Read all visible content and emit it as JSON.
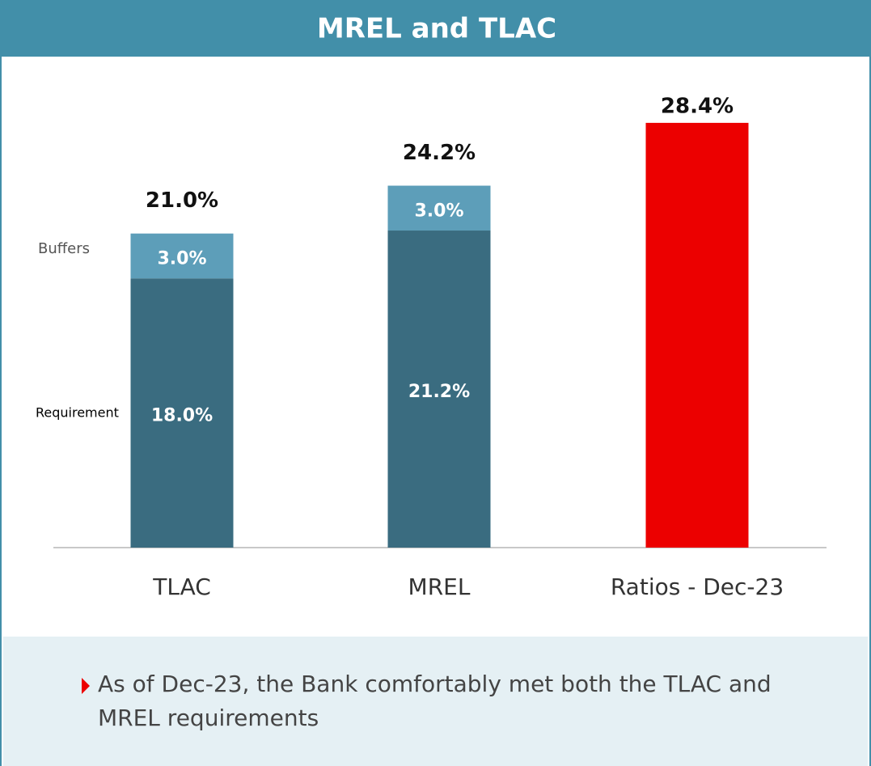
{
  "chart_data": {
    "type": "stacked_bar",
    "title": "MREL  and TLAC",
    "categories": [
      "TLAC",
      "MREL",
      "Ratios - Dec-23"
    ],
    "series": [
      {
        "name": "Requirement",
        "color": "#3a6c80",
        "values": [
          18.0,
          21.2,
          null
        ],
        "value_labels": [
          "18.0%",
          "21.2%",
          null
        ]
      },
      {
        "name": "Buffers",
        "color": "#5d9eb9",
        "values": [
          3.0,
          3.0,
          null
        ],
        "value_labels": [
          "3.0%",
          "3.0%",
          null
        ]
      },
      {
        "color": "#ec0000",
        "values": [
          null,
          null,
          28.4
        ],
        "value_labels": [
          null,
          null,
          "28.4%"
        ]
      }
    ],
    "totals": [
      21.0,
      24.2,
      null
    ],
    "total_labels": [
      "21.0%",
      "24.2%",
      null
    ],
    "ylim": [
      0,
      30
    ]
  },
  "notes": {
    "bullets": [
      "As of Dec-23, the Bank comfortably met both the TLAC and MREL requirements"
    ]
  }
}
